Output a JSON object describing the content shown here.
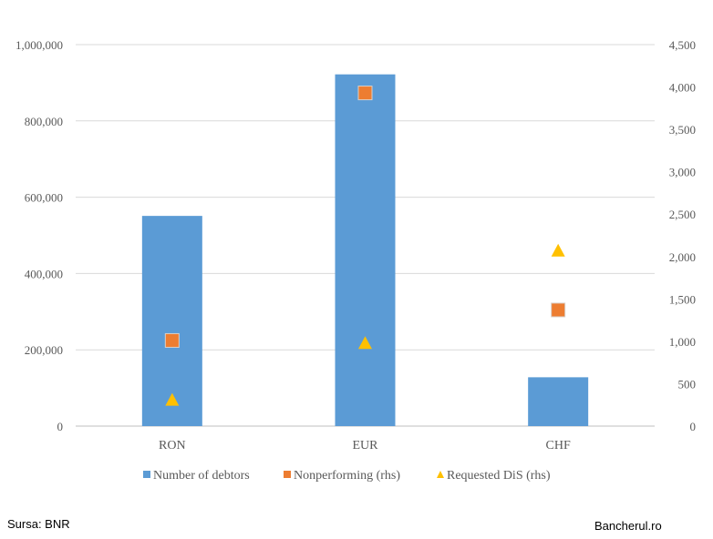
{
  "chart_data": {
    "type": "bar",
    "categories": [
      "RON",
      "EUR",
      "CHF"
    ],
    "series": [
      {
        "name": "Number of debtors",
        "kind": "bar",
        "axis": "left",
        "color": "#5B9BD5",
        "values": [
          551000,
          922000,
          128000
        ]
      },
      {
        "name": "Nonperforming (rhs)",
        "kind": "square",
        "axis": "right",
        "color": "#ED7D31",
        "values": [
          1010,
          3930,
          1370
        ]
      },
      {
        "name": "Requested DiS (rhs)",
        "kind": "triangle",
        "axis": "right",
        "color": "#FFC000",
        "values": [
          310,
          980,
          2070
        ]
      }
    ],
    "yleft": {
      "min": 0,
      "max": 1000000,
      "step": 200000,
      "ticks": [
        "0",
        "200,000",
        "400,000",
        "600,000",
        "800,000",
        "1,000,000"
      ]
    },
    "yright": {
      "min": 0,
      "max": 4500,
      "step": 500,
      "ticks": [
        "0",
        "500",
        "1,000",
        "1,500",
        "2,000",
        "2,500",
        "3,000",
        "3,500",
        "4,000",
        "4,500"
      ]
    },
    "grid": true,
    "legend": "bottom"
  },
  "footer": {
    "source": "Sursa: BNR",
    "site": "Bancherul.ro"
  }
}
